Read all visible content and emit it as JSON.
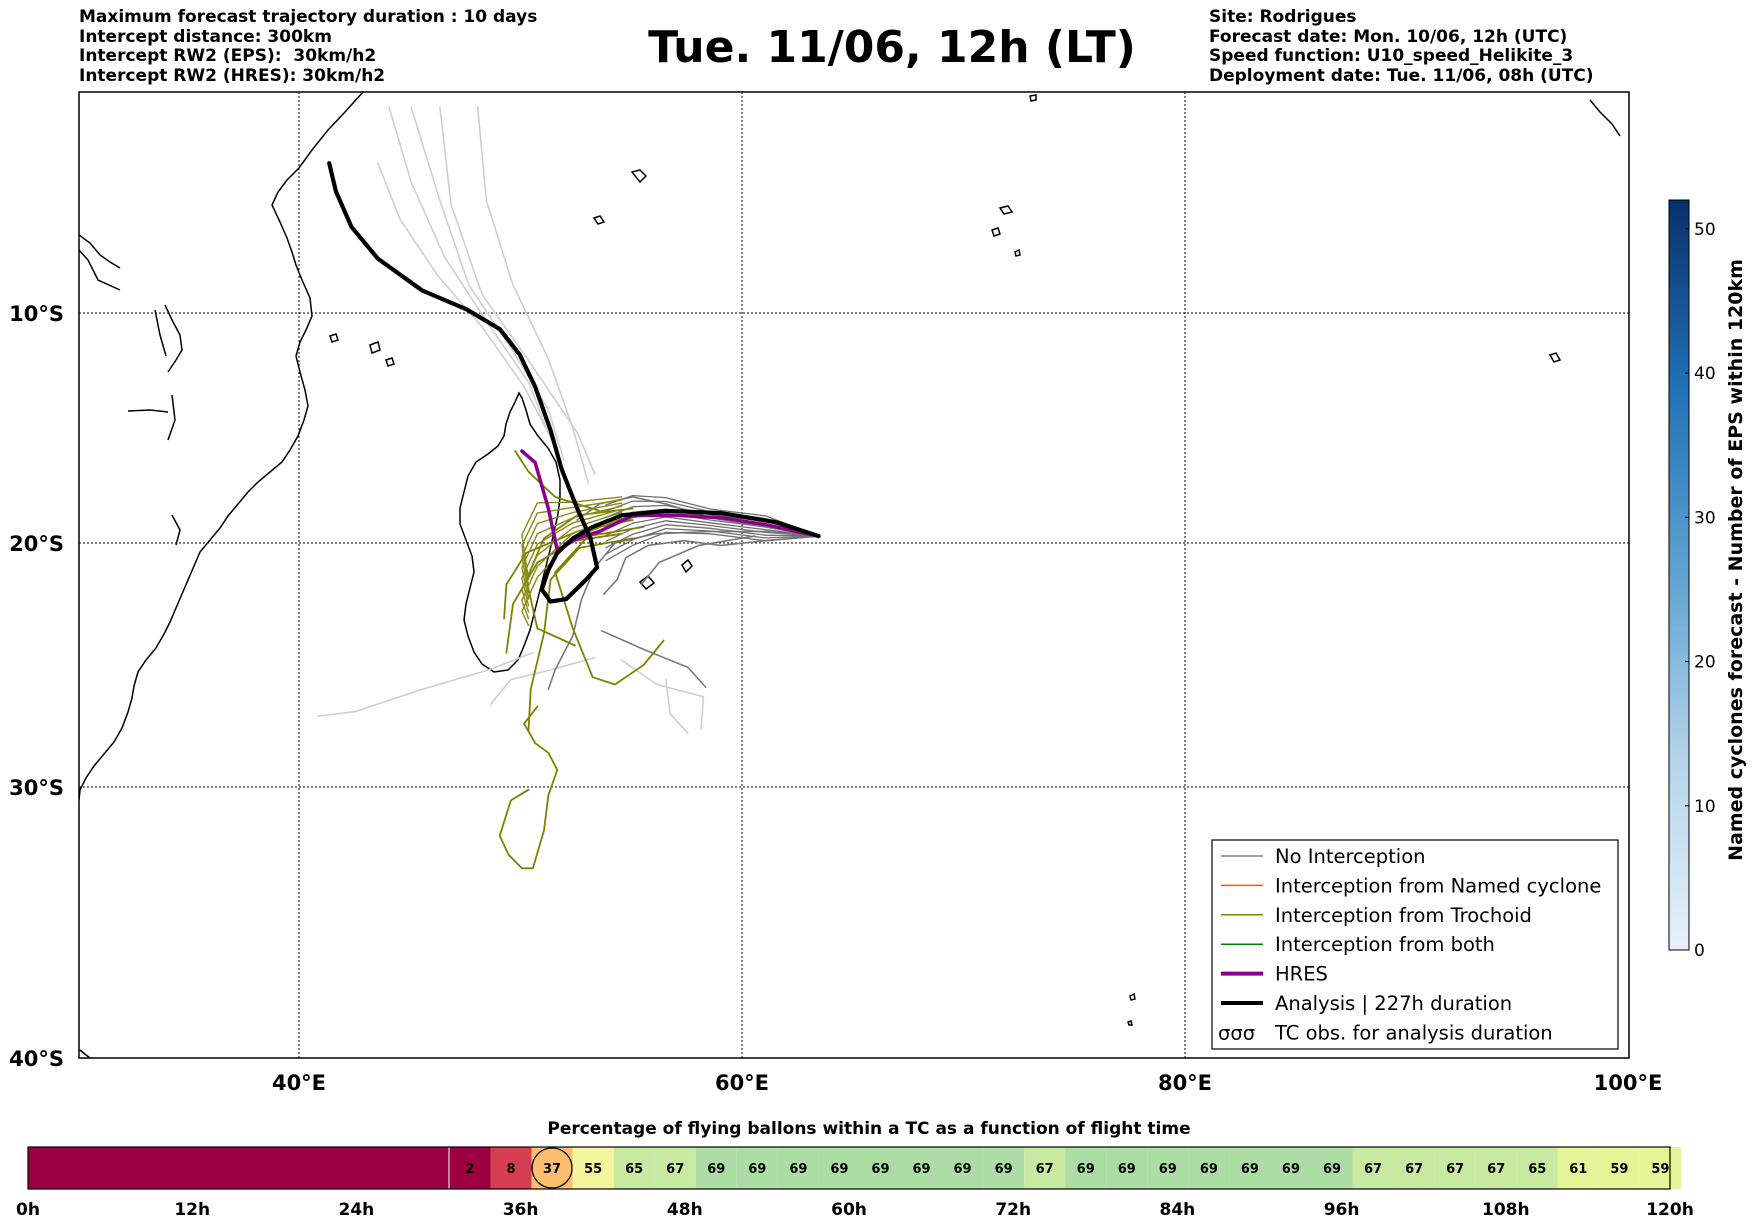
{
  "header_left": [
    "Maximum forecast trajectory duration : 10 days",
    "Intercept distance: 300km",
    "Intercept RW2 (EPS):  30km/h2",
    "Intercept RW2 (HRES): 30km/h2"
  ],
  "title": "Tue. 11/06, 12h (LT)",
  "header_right": [
    "Site: Rodrigues",
    "Forecast date: Mon. 10/06, 12h (UTC)",
    "Speed function: U10_speed_Helikite_3",
    "Deployment date: Tue. 11/06, 08h (UTC)"
  ],
  "map": {
    "lon_ticks": [
      "40°E",
      "60°E",
      "80°E",
      "100°E"
    ],
    "lat_ticks": [
      "10°S",
      "20°S",
      "30°S",
      "40°S"
    ],
    "lon_range": [
      30,
      100
    ],
    "lat_range": [
      -40,
      1.8
    ]
  },
  "legend": [
    {
      "label": "No Interception",
      "color": "#808080",
      "style": "thin"
    },
    {
      "label": "Interception from Named cyclone",
      "color": "#ff5500",
      "style": "thin"
    },
    {
      "label": "Interception from Trochoid",
      "color": "#808000",
      "style": "thin"
    },
    {
      "label": "Interception from both",
      "color": "#008000",
      "style": "thin"
    },
    {
      "label": "HRES",
      "color": "#8b008b",
      "style": "thick"
    },
    {
      "label": "Analysis | 227h duration",
      "color": "#000000",
      "style": "thick"
    },
    {
      "label": "TC obs. for analysis duration",
      "color": "#000000",
      "style": "symbol"
    }
  ],
  "legend_symbol": "σσσ",
  "colorbar": {
    "title": "Named cyclones forecast - Number of EPS within 120km",
    "ticks": [
      "0",
      "10",
      "20",
      "30",
      "40",
      "50"
    ],
    "min": 0,
    "max": 52,
    "color_low": "#e6effa",
    "color_high": "#08306b"
  },
  "timeline": {
    "title": "Percentage of flying ballons within a TC as a function of flight time",
    "tick_labels": [
      "0h",
      "12h",
      "24h",
      "36h",
      "48h",
      "60h",
      "72h",
      "84h",
      "96h",
      "108h",
      "120h"
    ],
    "empty_hours": 30,
    "step_hours": 3,
    "values": [
      2,
      8,
      37,
      55,
      65,
      67,
      69,
      69,
      69,
      69,
      69,
      69,
      69,
      69,
      67,
      69,
      69,
      69,
      69,
      69,
      69,
      69,
      67,
      67,
      67,
      67,
      65,
      61,
      59,
      59
    ],
    "highlight_index": 2,
    "colors": {
      "empty": "#9e0142",
      "v2": "#9e0142",
      "v8": "#d53e4f",
      "v37": "#fdbf6f",
      "v55": "#f5f5a0",
      "v59": "#e6f598",
      "v61": "#e6f598",
      "v65": "#c7e9a0",
      "v67": "#c7e9a0",
      "v69": "#abdda4"
    }
  },
  "chart_data": {
    "type": "map",
    "site": "Rodrigues",
    "release_point": {
      "lon": 63.4,
      "lat": -19.7
    },
    "hres_track": [
      [
        63.4,
        -19.7
      ],
      [
        61,
        -19.2
      ],
      [
        59,
        -18.9
      ],
      [
        57,
        -18.8
      ],
      [
        55,
        -18.8
      ],
      [
        53.5,
        -19.5
      ],
      [
        52.5,
        -19.8
      ],
      [
        51.6,
        -20.3
      ],
      [
        51.2,
        -18.5
      ],
      [
        50.6,
        -16.5
      ],
      [
        50,
        -16
      ]
    ],
    "analysis_track": [
      [
        63.4,
        -19.7
      ],
      [
        61.5,
        -19.1
      ],
      [
        59,
        -18.7
      ],
      [
        56.5,
        -18.6
      ],
      [
        54.5,
        -18.8
      ],
      [
        53.2,
        -19.3
      ],
      [
        52.3,
        -19.8
      ],
      [
        51.6,
        -20.4
      ],
      [
        51.2,
        -21.1
      ],
      [
        50.9,
        -21.9
      ],
      [
        51.3,
        -22.4
      ],
      [
        52,
        -22.3
      ],
      [
        52.9,
        -21.5
      ],
      [
        53.4,
        -21
      ],
      [
        53.1,
        -19.8
      ],
      [
        52.5,
        -18.5
      ],
      [
        51.8,
        -16.8
      ],
      [
        51.3,
        -15.1
      ],
      [
        50.6,
        -13.2
      ],
      [
        49.9,
        -11.8
      ],
      [
        49,
        -10.7
      ],
      [
        47.5,
        -9.8
      ],
      [
        45.5,
        -8.8
      ],
      [
        43.5,
        -7.1
      ],
      [
        42.3,
        -5.4
      ],
      [
        41.6,
        -3.5
      ],
      [
        41.3,
        -2
      ]
    ],
    "trochoid_tracks": [
      [
        [
          55,
          -18.5
        ],
        [
          52.5,
          -18.8
        ],
        [
          51,
          -19.8
        ],
        [
          50.2,
          -21.5
        ],
        [
          50.7,
          -23.5
        ],
        [
          52.4,
          -24.2
        ]
      ],
      [
        [
          55.5,
          -19.3
        ],
        [
          53,
          -19.7
        ],
        [
          51.5,
          -21.2
        ],
        [
          52.3,
          -23.5
        ],
        [
          53.2,
          -25.5
        ],
        [
          54.2,
          -25.8
        ],
        [
          55.5,
          -25
        ],
        [
          56.4,
          -24
        ]
      ],
      [
        [
          55,
          -19.8
        ],
        [
          52.6,
          -20.2
        ],
        [
          51.3,
          -21.5
        ],
        [
          51,
          -23.7
        ],
        [
          50.4,
          -26
        ],
        [
          50.3,
          -27.7
        ]
      ],
      [
        [
          54.5,
          -19.6
        ],
        [
          52.4,
          -19.9
        ],
        [
          50.7,
          -20.8
        ],
        [
          49.6,
          -22.5
        ],
        [
          49.3,
          -24.5
        ]
      ],
      [
        [
          55,
          -19
        ],
        [
          52.5,
          -19.5
        ],
        [
          50.2,
          -20.4
        ],
        [
          49.3,
          -21.7
        ],
        [
          49.2,
          -23.1
        ]
      ],
      [
        [
          53.5,
          -18.6
        ],
        [
          51.5,
          -18
        ],
        [
          50.3,
          -16.9
        ],
        [
          49.7,
          -16
        ]
      ],
      [
        [
          50.7,
          -26.7
        ],
        [
          50.1,
          -27.4
        ],
        [
          50.6,
          -28.2
        ],
        [
          51.2,
          -28.6
        ],
        [
          51.6,
          -29.3
        ],
        [
          51.2,
          -30.3
        ],
        [
          51,
          -31.6
        ],
        [
          50.5,
          -33
        ],
        [
          50,
          -33
        ],
        [
          49.4,
          -32.5
        ],
        [
          49,
          -31.8
        ],
        [
          49.5,
          -30.5
        ],
        [
          50.3,
          -30.1
        ]
      ]
    ],
    "no_interception_tracks": [
      [
        [
          63.4,
          -19.7
        ],
        [
          61,
          -19.5
        ],
        [
          58.5,
          -19.5
        ],
        [
          56,
          -19.6
        ],
        [
          54.2,
          -20
        ],
        [
          53.3,
          -21
        ],
        [
          52.7,
          -22.3
        ],
        [
          52.3,
          -23.8
        ],
        [
          51.5,
          -25.2
        ],
        [
          51.2,
          -26
        ]
      ],
      [
        [
          63.4,
          -19.7
        ],
        [
          61,
          -19.9
        ],
        [
          59,
          -20.1
        ],
        [
          57.3,
          -19.9
        ],
        [
          55.7,
          -20.1
        ],
        [
          54.7,
          -20.6
        ],
        [
          54.3,
          -21.5
        ],
        [
          53.7,
          -22.1
        ]
      ],
      [
        [
          63.4,
          -19.7
        ],
        [
          61,
          -19.3
        ],
        [
          58.5,
          -18.9
        ],
        [
          56.5,
          -18.3
        ],
        [
          55,
          -18
        ],
        [
          53.5,
          -18.3
        ],
        [
          52.5,
          -19
        ]
      ],
      [
        [
          53.6,
          -23.6
        ],
        [
          55.6,
          -24.4
        ],
        [
          57.5,
          -25.1
        ],
        [
          58.3,
          -25.9
        ]
      ],
      [
        [
          60.5,
          -19.7
        ],
        [
          58,
          -20.1
        ],
        [
          56.2,
          -20.8
        ],
        [
          55.4,
          -21.7
        ]
      ]
    ],
    "eps_background_tracks": [
      [
        [
          44,
          1
        ],
        [
          45,
          -3
        ],
        [
          46.5,
          -7
        ],
        [
          48.5,
          -10.5
        ],
        [
          50.3,
          -13
        ],
        [
          51.1,
          -15
        ]
      ],
      [
        [
          45,
          1
        ],
        [
          46.3,
          -4
        ],
        [
          47.6,
          -8.5
        ],
        [
          49.5,
          -11.5
        ],
        [
          51.2,
          -14.2
        ],
        [
          51.9,
          -16.4
        ]
      ],
      [
        [
          48,
          1
        ],
        [
          48.4,
          -4
        ],
        [
          49.6,
          -8.5
        ],
        [
          51.2,
          -12
        ],
        [
          52.3,
          -15
        ],
        [
          53,
          -17.4
        ]
      ],
      [
        [
          43.5,
          -2
        ],
        [
          44.5,
          -5
        ],
        [
          46.2,
          -8
        ],
        [
          48.2,
          -10.6
        ],
        [
          50.1,
          -13.2
        ],
        [
          51.4,
          -15.6
        ]
      ],
      [
        [
          46.3,
          1
        ],
        [
          46.8,
          -4.2
        ],
        [
          48.2,
          -9
        ],
        [
          50.4,
          -12.2
        ],
        [
          52.5,
          -15.2
        ],
        [
          53.3,
          -17
        ]
      ],
      [
        [
          50.5,
          -24.5
        ],
        [
          48.5,
          -25.2
        ],
        [
          45.5,
          -26
        ],
        [
          42.5,
          -26.9
        ],
        [
          40.8,
          -27.1
        ]
      ],
      [
        [
          53.3,
          -24.7
        ],
        [
          51.3,
          -25.2
        ],
        [
          49.5,
          -25.6
        ],
        [
          48.6,
          -26.6
        ]
      ],
      [
        [
          56.5,
          -25.6
        ],
        [
          56.7,
          -27
        ],
        [
          57.5,
          -27.8
        ]
      ],
      [
        [
          54.5,
          -24.8
        ],
        [
          56.1,
          -25.8
        ],
        [
          58.2,
          -26.3
        ],
        [
          58.1,
          -27.6
        ]
      ]
    ]
  }
}
